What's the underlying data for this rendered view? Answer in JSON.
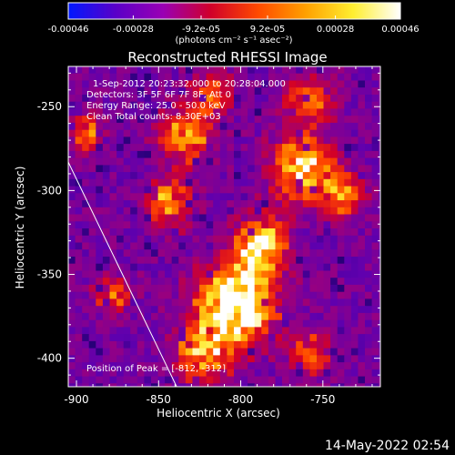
{
  "colorbar": {
    "tick_labels": [
      "-0.00046",
      "-0.00028",
      "-9.2e-05",
      "9.2e-05",
      "0.00028",
      "0.00046"
    ],
    "tick_values": [
      -0.00046,
      -0.00028,
      -9.2e-05,
      9.2e-05,
      0.00028,
      0.00046
    ],
    "range": [
      -0.00046,
      0.00046
    ],
    "unit_label": "(photons cm⁻² s⁻¹ asec⁻²)",
    "colors": [
      "#0018ff",
      "#5a00c8",
      "#9a00b4",
      "#d0002a",
      "#ff4a00",
      "#ffa000",
      "#ffee30",
      "#ffffff"
    ]
  },
  "chart_data": {
    "type": "heatmap",
    "title": "Reconstructed RHESSI Image",
    "xlabel": "Heliocentric X (arcsec)",
    "ylabel": "Heliocentric Y (arcsec)",
    "xlim": [
      -905,
      -715
    ],
    "ylim": [
      -417,
      -226
    ],
    "x_ticks": [
      -900,
      -850,
      -800,
      -750
    ],
    "x_tick_labels": [
      "-900",
      "-850",
      "-800",
      "-750"
    ],
    "y_ticks": [
      -250,
      -300,
      -350,
      -400
    ],
    "y_tick_labels": [
      "-250",
      "-300",
      "-350",
      "-400"
    ],
    "annotations": [
      "1-Sep-2012 20:23:32.000 to 20:28:04.000",
      "Detectors: 3F 5F 6F 7F 8F, Att 0",
      "Energy Range: 25.0 - 50.0 keV",
      "Clean    Total counts: 8.30E+03"
    ],
    "peak_label": "Position of Peak = [-812, -312]",
    "peak": [
      -812,
      -312
    ],
    "limb_line": [
      [
        -905,
        -283
      ],
      [
        -839,
        -417
      ]
    ],
    "hot_regions": [
      {
        "x": -805,
        "y": -365,
        "sigma": 16,
        "amp": 1.0
      },
      {
        "x": -790,
        "y": -330,
        "sigma": 11,
        "amp": 0.75
      },
      {
        "x": -835,
        "y": -265,
        "sigma": 11,
        "amp": 0.6
      },
      {
        "x": -845,
        "y": -305,
        "sigma": 10,
        "amp": 0.55
      },
      {
        "x": -765,
        "y": -285,
        "sigma": 13,
        "amp": 0.7
      },
      {
        "x": -740,
        "y": -300,
        "sigma": 9,
        "amp": 0.55
      },
      {
        "x": -895,
        "y": -265,
        "sigma": 7,
        "amp": 0.5
      },
      {
        "x": -825,
        "y": -395,
        "sigma": 12,
        "amp": 0.6
      },
      {
        "x": -760,
        "y": -245,
        "sigma": 10,
        "amp": 0.5
      },
      {
        "x": -820,
        "y": -240,
        "sigma": 9,
        "amp": 0.45
      },
      {
        "x": -880,
        "y": -360,
        "sigma": 8,
        "amp": 0.45
      },
      {
        "x": -760,
        "y": -395,
        "sigma": 9,
        "amp": 0.45
      }
    ]
  },
  "footer": {
    "timestamp": "14-May-2022 02:54"
  }
}
